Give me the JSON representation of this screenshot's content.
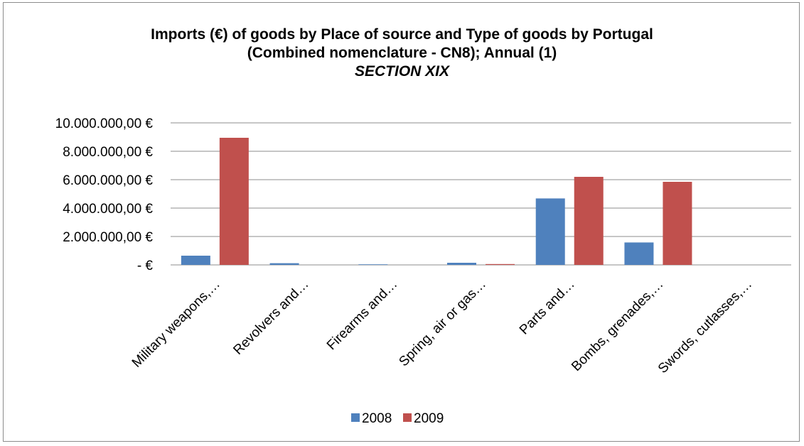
{
  "chart_data": {
    "type": "bar",
    "title_line1": "Imports (€) of goods by Place of source and Type of goods by Portugal",
    "title_line2": "(Combined nomenclature - CN8); Annual (1)",
    "subtitle": "SECTION XIX",
    "categories": [
      "Military weapons,…",
      "Revolvers and…",
      "Firearms and…",
      "Spring, air or gas…",
      "Parts and…",
      "Bombs, grenades,…",
      "Swords, cutlasses,…"
    ],
    "series": [
      {
        "name": "2008",
        "color": "#4f81bd",
        "values": [
          650000,
          120000,
          40000,
          150000,
          4680000,
          1580000,
          0
        ]
      },
      {
        "name": "2009",
        "color": "#c0504d",
        "values": [
          8950000,
          0,
          0,
          60000,
          6200000,
          5850000,
          0
        ]
      }
    ],
    "ylim": [
      0,
      10000000
    ],
    "yticks": [
      0,
      2000000,
      4000000,
      6000000,
      8000000,
      10000000
    ],
    "ytick_labels": [
      "-  €",
      "2.000.000,00 €",
      "4.000.000,00 €",
      "6.000.000,00 €",
      "8.000.000,00 €",
      "10.000.000,00 €"
    ],
    "grid": true,
    "legend_position": "bottom"
  }
}
